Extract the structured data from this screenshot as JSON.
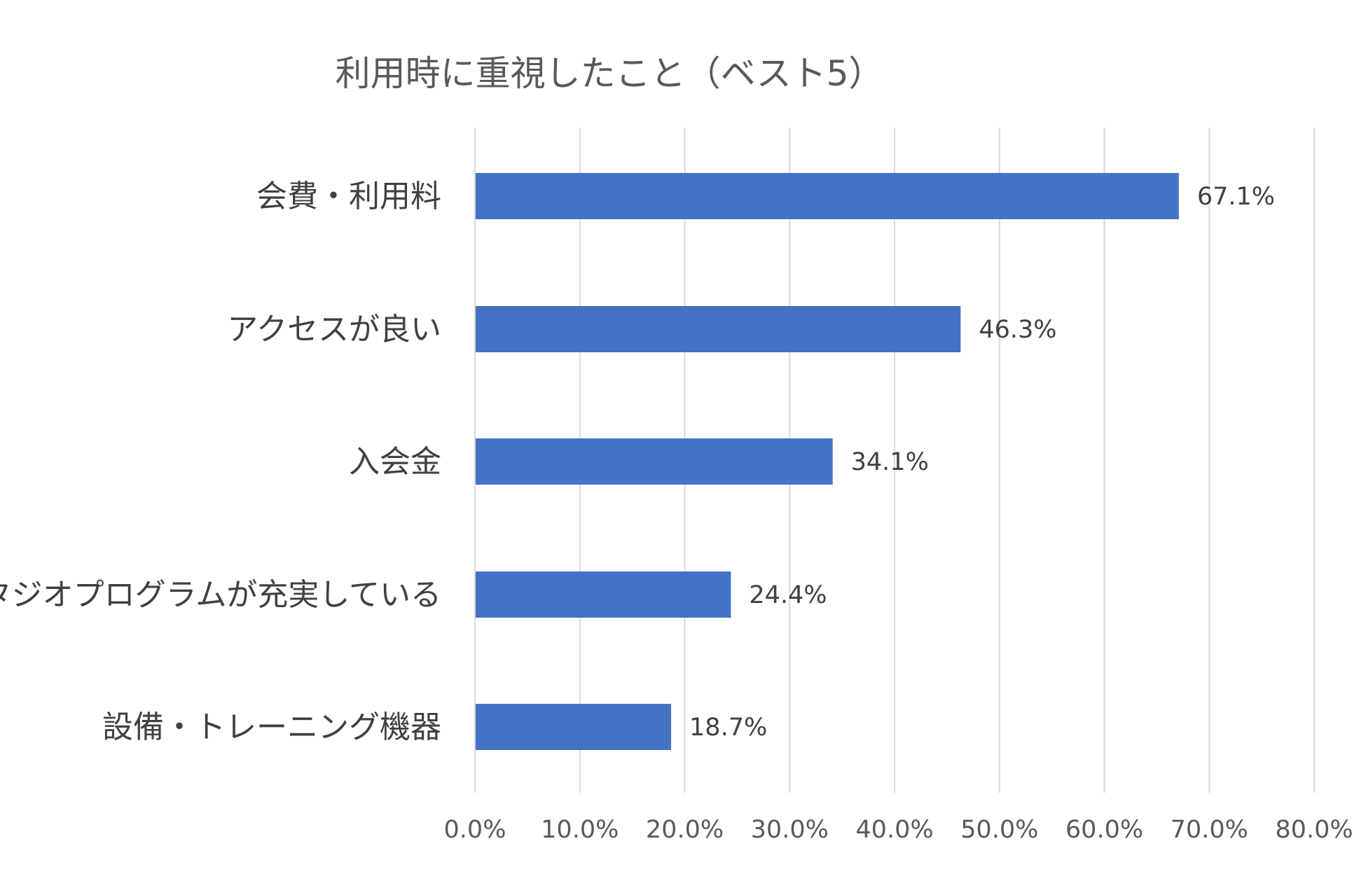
{
  "chart_data": {
    "type": "bar",
    "orientation": "horizontal",
    "title": "利用時に重視したこと（ベスト5）",
    "categories": [
      "会費・利用料",
      "アクセスが良い",
      "入会金",
      "スタジオプログラムが充実している",
      "設備・トレーニング機器"
    ],
    "values": [
      67.1,
      46.3,
      34.1,
      24.4,
      18.7
    ],
    "value_labels": [
      "67.1%",
      "46.3%",
      "34.1%",
      "24.4%",
      "18.7%"
    ],
    "xlim": [
      0,
      80
    ],
    "xticks": [
      0,
      10,
      20,
      30,
      40,
      50,
      60,
      70,
      80
    ],
    "xtick_labels": [
      "0.0%",
      "10.0%",
      "20.0%",
      "30.0%",
      "40.0%",
      "50.0%",
      "60.0%",
      "70.0%",
      "80.0%"
    ],
    "xlabel": "",
    "ylabel": "",
    "grid": "vertical",
    "legend": "none",
    "bar_color": "#4472C4"
  }
}
